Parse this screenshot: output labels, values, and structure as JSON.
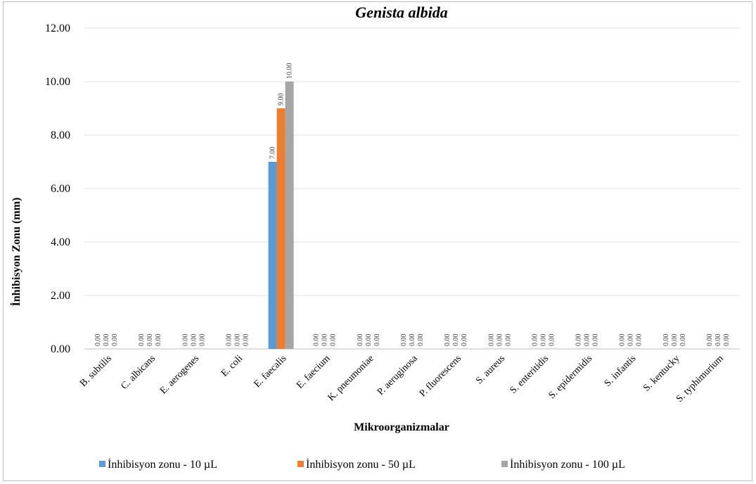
{
  "chart_data": {
    "type": "bar",
    "title": "Genista albida",
    "xlabel": "Mikroorganizmalar",
    "ylabel": "İnhibisyon Zonu (mm)",
    "ylim": [
      0,
      12
    ],
    "yticks": [
      "0.00",
      "2.00",
      "4.00",
      "6.00",
      "8.00",
      "10.00",
      "12.00"
    ],
    "grid": true,
    "legend_position": "bottom",
    "categories": [
      "B. subtilis",
      "C. albicans",
      "E. aerogenes",
      "E. coli",
      "E. faecalis",
      "E. faecium",
      "K. pneumoniae",
      "P. aeruginosa",
      "P. fluorescens",
      "S. aureus",
      "S. enteritidis",
      "S. epidermidis",
      "S. infantis",
      "S. kentucky",
      "S. typhimurium"
    ],
    "series": [
      {
        "name": "İnhibisyon zonu  - 10 µL",
        "color": "#5b9bd5",
        "values": [
          0,
          0,
          0,
          0,
          7,
          0,
          0,
          0,
          0,
          0,
          0,
          0,
          0,
          0,
          0
        ],
        "labels": [
          "0.00",
          "0.00",
          "0.00",
          "0.00",
          "7.00",
          "0.00",
          "0.00",
          "0.00",
          "0.00",
          "0.00",
          "0.00",
          "0.00",
          "0.00",
          "0.00",
          "0.00"
        ]
      },
      {
        "name": "İnhibisyon zonu  - 50 µL",
        "color": "#ed7d31",
        "values": [
          0,
          0,
          0,
          0,
          9,
          0,
          0,
          0,
          0,
          0,
          0,
          0,
          0,
          0,
          0
        ],
        "labels": [
          "0.00",
          "0.00",
          "0.00",
          "0.00",
          "9.00",
          "0.00",
          "0.00",
          "0.00",
          "0.00",
          "0.00",
          "0.00",
          "0.00",
          "0.00",
          "0.00",
          "0.00"
        ]
      },
      {
        "name": "İnhibisyon zonu  - 100 µL",
        "color": "#a5a5a5",
        "values": [
          0,
          0,
          0,
          0,
          10,
          0,
          0,
          0,
          0,
          0,
          0,
          0,
          0,
          0,
          0
        ],
        "labels": [
          "0.00",
          "0.00",
          "0.00",
          "0.00",
          "10.00",
          "0.00",
          "0.00",
          "0.00",
          "0.00",
          "0.00",
          "0.00",
          "0.00",
          "0.00",
          "0.00",
          "0.00"
        ]
      }
    ]
  }
}
